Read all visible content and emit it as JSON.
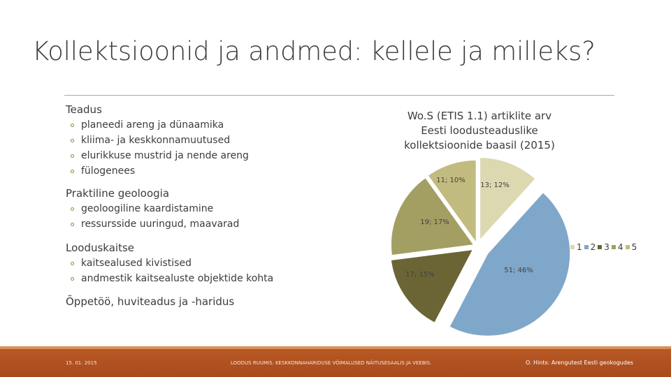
{
  "slide": {
    "title": "Kollektsioonid ja andmed: kellele ja milleks?"
  },
  "sections": [
    {
      "heading": "Teadus",
      "items": [
        "planeedi areng ja dünaamika",
        "kliima- ja keskkonnamuutused",
        "elurikkuse mustrid ja nende areng",
        "fülogenees"
      ]
    },
    {
      "heading": "Praktiline geoloogia",
      "items": [
        "geoloogiline kaardistamine",
        "ressursside uuringud, maavarad"
      ]
    },
    {
      "heading": "Looduskaitse",
      "items": [
        "kaitsealused kivistised",
        "andmestik kaitsealuste objektide kohta"
      ]
    },
    {
      "heading": "Õppetöö, huviteadus ja -haridus",
      "items": []
    }
  ],
  "chart_data": {
    "type": "pie",
    "title": "Wo.S (ETIS 1.1) artiklite arv Eesti loodusteaduslike kollektsioonide baasil (2015)",
    "title_lines": [
      "Wo.S (ETIS 1.1) artiklite arv",
      "Eesti loodusteaduslike",
      "kollektsioonide baasil (2015)"
    ],
    "categories": [
      "1",
      "2",
      "3",
      "4",
      "5"
    ],
    "values": [
      13,
      51,
      17,
      19,
      11
    ],
    "percentages": [
      12,
      46,
      15,
      17,
      10
    ],
    "data_labels": [
      "13; 12%",
      "51; 46%",
      "17; 15%",
      "19; 17%",
      "11; 10%"
    ],
    "colors": [
      "#dcd8b0",
      "#7fa7c9",
      "#6b6535",
      "#a39e62",
      "#c2bb80"
    ],
    "exploded": true,
    "legend_position": "right"
  },
  "footer": {
    "date": "15. 01. 2015",
    "center": "LOODUS RUUMIS. KESKKONNAHARIDUSE VÕIMALUSED NÄITUSESAALIS JA VEEBIS.",
    "right": "O. Hints: Arengutest Eesti geokogudes"
  }
}
